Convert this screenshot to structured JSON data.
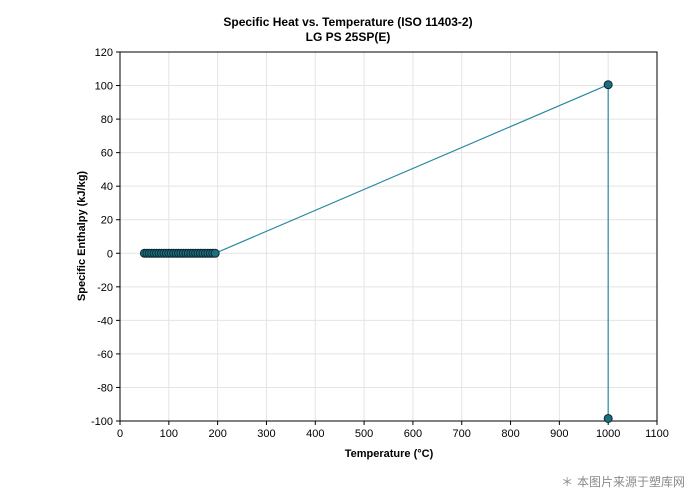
{
  "chart_data": {
    "type": "line",
    "title": "Specific Heat vs. Temperature (ISO 11403-2)",
    "subtitle": "LG PS 25SP(E)",
    "xlabel": "Temperature (°C)",
    "ylabel": "Specific Enthalpy (kJ/kg)",
    "xlim": [
      0,
      1100
    ],
    "ylim": [
      -100,
      120
    ],
    "xticks": [
      "0",
      "100",
      "200",
      "300",
      "400",
      "500",
      "600",
      "700",
      "800",
      "900",
      "1000",
      "1100"
    ],
    "yticks": [
      "-100",
      "-80",
      "-60",
      "-40",
      "-20",
      "0",
      "20",
      "40",
      "60",
      "80",
      "100",
      "120"
    ],
    "grid": true,
    "series": [
      {
        "x": [
          50,
          55,
          60,
          65,
          70,
          75,
          80,
          85,
          90,
          95,
          100,
          105,
          110,
          115,
          120,
          125,
          130,
          135,
          140,
          145,
          150,
          155,
          160,
          165,
          170,
          175,
          180,
          185,
          190,
          195,
          1000,
          1000
        ],
        "y": [
          0,
          0,
          0,
          0,
          0,
          0,
          0,
          0,
          0,
          0,
          0,
          0,
          0,
          0,
          0,
          0,
          0,
          0,
          0,
          0,
          0,
          0,
          0,
          0,
          0,
          0,
          0,
          0,
          0,
          0,
          100.5,
          -98.5
        ]
      }
    ],
    "line_color": "#2a8a9e",
    "marker_fill": "#1b6f80",
    "marker_stroke": "#0a2a33"
  },
  "watermark": "＊ 本图片来源于塑库网"
}
